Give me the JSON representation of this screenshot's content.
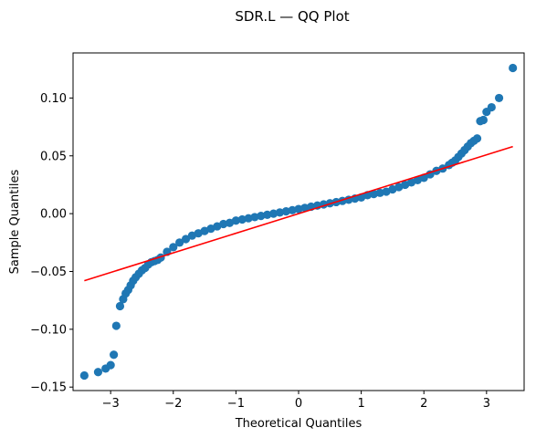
{
  "chart_data": {
    "type": "scatter",
    "title": "SDR.L — QQ Plot",
    "xlabel": "Theoretical Quantiles",
    "ylabel": "Sample Quantiles",
    "xlim": [
      -3.6,
      3.6
    ],
    "ylim": [
      -0.153,
      0.139
    ],
    "xticks": [
      -3,
      -2,
      -1,
      0,
      1,
      2,
      3
    ],
    "xtick_labels": [
      "−3",
      "−2",
      "−1",
      "0",
      "1",
      "2",
      "3"
    ],
    "yticks": [
      -0.15,
      -0.1,
      -0.05,
      0.0,
      0.05,
      0.1
    ],
    "ytick_labels": [
      "−0.15",
      "−0.10",
      "−0.05",
      "0.00",
      "0.05",
      "0.10"
    ],
    "grid": false,
    "series": [
      {
        "kind": "points",
        "color": "#1f77b4",
        "x": [
          -3.42,
          -3.2,
          -3.08,
          -3.0,
          -2.95,
          -2.91,
          -2.85,
          -2.8,
          -2.76,
          -2.72,
          -2.68,
          -2.64,
          -2.6,
          -2.55,
          -2.5,
          -2.45,
          -2.4,
          -2.35,
          -2.3,
          -2.25,
          -2.2,
          -2.1,
          -2.0,
          -1.9,
          -1.8,
          -1.7,
          -1.6,
          -1.5,
          -1.4,
          -1.3,
          -1.2,
          -1.1,
          -1.0,
          -0.9,
          -0.8,
          -0.7,
          -0.6,
          -0.5,
          -0.4,
          -0.3,
          -0.2,
          -0.1,
          0.0,
          0.1,
          0.2,
          0.3,
          0.4,
          0.5,
          0.6,
          0.7,
          0.8,
          0.9,
          1.0,
          1.1,
          1.2,
          1.3,
          1.4,
          1.5,
          1.6,
          1.7,
          1.8,
          1.9,
          2.0,
          2.1,
          2.2,
          2.3,
          2.4,
          2.45,
          2.5,
          2.55,
          2.6,
          2.65,
          2.7,
          2.75,
          2.8,
          2.85,
          2.9,
          2.95,
          3.0,
          3.08,
          3.2,
          3.42
        ],
        "y": [
          -0.14,
          -0.137,
          -0.134,
          -0.131,
          -0.122,
          -0.097,
          -0.08,
          -0.074,
          -0.069,
          -0.066,
          -0.062,
          -0.058,
          -0.055,
          -0.052,
          -0.049,
          -0.047,
          -0.044,
          -0.042,
          -0.041,
          -0.04,
          -0.038,
          -0.033,
          -0.029,
          -0.025,
          -0.022,
          -0.019,
          -0.017,
          -0.015,
          -0.013,
          -0.011,
          -0.009,
          -0.008,
          -0.006,
          -0.005,
          -0.004,
          -0.003,
          -0.002,
          -0.001,
          0.0,
          0.001,
          0.002,
          0.003,
          0.004,
          0.005,
          0.006,
          0.007,
          0.008,
          0.009,
          0.01,
          0.011,
          0.012,
          0.013,
          0.014,
          0.016,
          0.017,
          0.018,
          0.019,
          0.021,
          0.023,
          0.025,
          0.027,
          0.029,
          0.031,
          0.034,
          0.037,
          0.039,
          0.042,
          0.044,
          0.046,
          0.049,
          0.052,
          0.055,
          0.058,
          0.061,
          0.063,
          0.065,
          0.08,
          0.081,
          0.088,
          0.092,
          0.1,
          0.126
        ]
      },
      {
        "kind": "line",
        "color": "#ff0000",
        "x": [
          -3.42,
          3.42
        ],
        "y": [
          -0.058,
          0.058
        ]
      }
    ]
  }
}
